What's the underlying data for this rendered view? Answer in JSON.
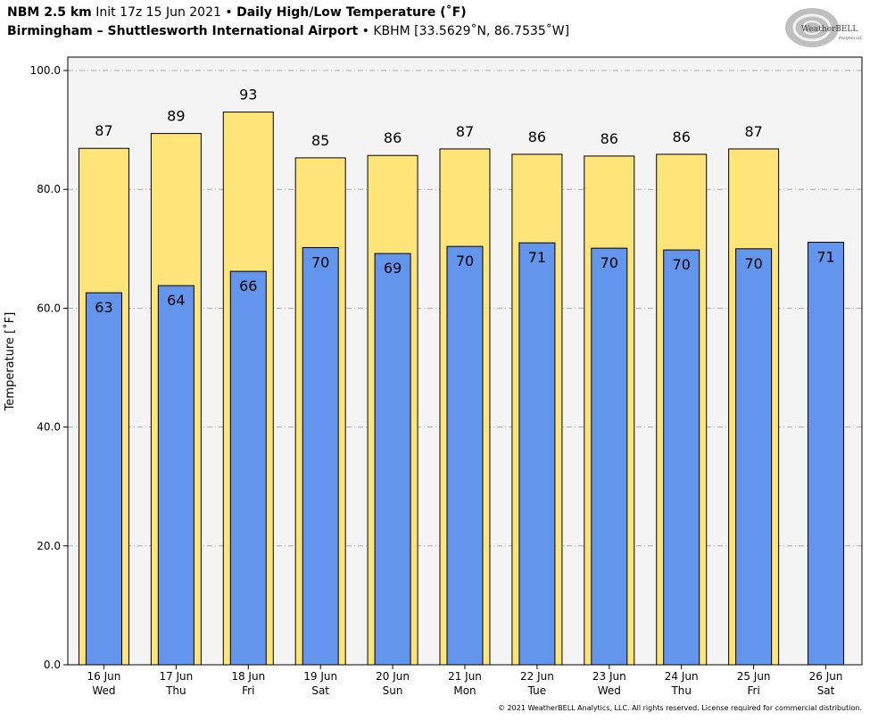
{
  "header": {
    "model": "NBM 2.5 km",
    "init": "Init 17z 15 Jun 2021",
    "bullet": "•",
    "product": "Daily High/Low Temperature (˚F)",
    "location": "Birmingham – Shuttlesworth International Airport",
    "station": "KBHM [33.5629˚N, 86.7535˚W]"
  },
  "logo": {
    "text_main": "WeatherBELL",
    "text_sub": "Analytics LLC"
  },
  "copyright": "© 2021 WeatherBELL Analytics, LLC. All rights reserved. License required for commercial distribution.",
  "colors": {
    "high": "#FFE47A",
    "low": "#6495ED",
    "plot_bg": "#F4F4F4",
    "grid": "#AAAAAA"
  },
  "chart_data": {
    "type": "bar",
    "ylabel": "Temperature [˚F]",
    "ylim": [
      0,
      100
    ],
    "yticks": [
      "0.0",
      "20.0",
      "40.0",
      "60.0",
      "80.0",
      "100.0"
    ],
    "grid": true,
    "categories": [
      [
        "16 Jun",
        "Wed"
      ],
      [
        "17 Jun",
        "Thu"
      ],
      [
        "18 Jun",
        "Fri"
      ],
      [
        "19 Jun",
        "Sat"
      ],
      [
        "20 Jun",
        "Sun"
      ],
      [
        "21 Jun",
        "Mon"
      ],
      [
        "22 Jun",
        "Tue"
      ],
      [
        "23 Jun",
        "Wed"
      ],
      [
        "24 Jun",
        "Thu"
      ],
      [
        "25 Jun",
        "Fri"
      ],
      [
        "26 Jun",
        "Sat"
      ]
    ],
    "series": [
      {
        "key": "high",
        "values": [
          86.9,
          89.4,
          93.0,
          85.3,
          85.7,
          86.8,
          85.9,
          85.6,
          85.9,
          86.8,
          null
        ],
        "labels": [
          "87",
          "89",
          "93",
          "85",
          "86",
          "87",
          "86",
          "86",
          "86",
          "87",
          null
        ]
      },
      {
        "key": "low",
        "values": [
          62.6,
          63.8,
          66.2,
          70.2,
          69.2,
          70.4,
          71.0,
          70.1,
          69.8,
          70.0,
          71.1
        ],
        "labels": [
          "63",
          "64",
          "66",
          "70",
          "69",
          "70",
          "71",
          "70",
          "70",
          "70",
          "71"
        ]
      }
    ]
  }
}
